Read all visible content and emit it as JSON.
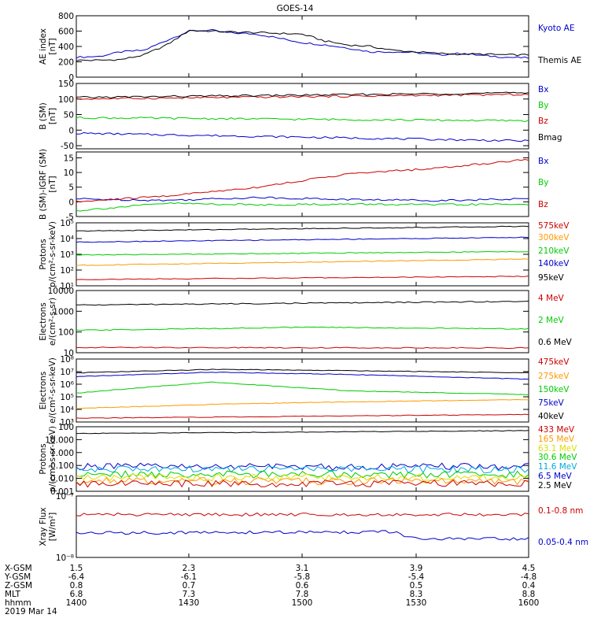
{
  "title": "GOES-14",
  "footer": {
    "rows": [
      {
        "label": "X-GSM",
        "values": [
          "1.5",
          "2.3",
          "3.1",
          "3.9",
          "4.5"
        ]
      },
      {
        "label": "Y-GSM",
        "values": [
          "-6.4",
          "-6.1",
          "-5.8",
          "-5.4",
          "-4.8"
        ]
      },
      {
        "label": "Z-GSM",
        "values": [
          "0.8",
          "0.7",
          "0.6",
          "0.5",
          "0.4"
        ]
      },
      {
        "label": "MLT",
        "values": [
          "6.8",
          "7.3",
          "7.8",
          "8.3",
          "8.8"
        ]
      },
      {
        "label": "hhmm",
        "values": [
          "1400",
          "1430",
          "1500",
          "1530",
          "1600"
        ]
      }
    ],
    "date": "2019 Mar 14"
  },
  "colors": {
    "black": "#000000",
    "blue": "#0000cc",
    "red": "#cc0000",
    "green": "#00cc00",
    "orange": "#ff9900",
    "cyan": "#00aadd",
    "yellow": "#dddd00"
  },
  "chart_data": [
    {
      "type": "line",
      "ylabel": [
        "AE index",
        "[nT]"
      ],
      "ylim": [
        0,
        800
      ],
      "yticks": [
        "0",
        "200",
        "400",
        "600",
        "800"
      ],
      "yticks_values": [
        0,
        200,
        400,
        600,
        800
      ],
      "series": [
        {
          "name": "Kyoto AE",
          "color": "#0000cc",
          "x": [
            0,
            0.05,
            0.1,
            0.15,
            0.2,
            0.25,
            0.3,
            0.33,
            0.4,
            0.5,
            0.55,
            0.6,
            0.65,
            0.7,
            0.75,
            0.8,
            0.85,
            0.9,
            0.95,
            1
          ],
          "values": [
            260,
            270,
            330,
            350,
            480,
            600,
            610,
            580,
            560,
            450,
            420,
            380,
            330,
            330,
            320,
            290,
            310,
            280,
            260,
            250
          ]
        },
        {
          "name": "Themis AE",
          "color": "#000000",
          "x": [
            0,
            0.05,
            0.1,
            0.15,
            0.2,
            0.25,
            0.3,
            0.33,
            0.4,
            0.5,
            0.55,
            0.6,
            0.65,
            0.7,
            0.75,
            0.8,
            0.85,
            0.9,
            0.95,
            1
          ],
          "values": [
            220,
            220,
            230,
            290,
            420,
            610,
            600,
            590,
            580,
            560,
            470,
            420,
            400,
            350,
            330,
            310,
            300,
            300,
            290,
            290
          ]
        }
      ],
      "labels": [
        "Kyoto AE",
        "Themis AE"
      ]
    },
    {
      "type": "line",
      "ylabel": [
        "B (SM)",
        "[nT]"
      ],
      "ylim": [
        -60,
        150
      ],
      "yticks": [
        "-50",
        "0",
        "50",
        "100",
        "150"
      ],
      "yticks_values": [
        -50,
        0,
        50,
        100,
        150
      ],
      "series": [
        {
          "name": "Bx",
          "color": "#0000cc",
          "x": [
            0,
            1
          ],
          "values": [
            -10,
            -35
          ]
        },
        {
          "name": "By",
          "color": "#00cc00",
          "x": [
            0,
            1
          ],
          "values": [
            40,
            30
          ]
        },
        {
          "name": "Bz",
          "color": "#cc0000",
          "x": [
            0,
            1
          ],
          "values": [
            100,
            115
          ]
        },
        {
          "name": "Bmag",
          "color": "#000000",
          "x": [
            0,
            1
          ],
          "values": [
            105,
            120
          ]
        }
      ],
      "labels": [
        "Bx",
        "By",
        "Bz",
        "Bmag"
      ]
    },
    {
      "type": "line",
      "ylabel": [
        "B (SM)-IGRF (SM)",
        "[nT]"
      ],
      "ylim": [
        -5,
        17
      ],
      "yticks": [
        "-5",
        "0",
        "5",
        "10",
        "15"
      ],
      "yticks_values": [
        -5,
        0,
        5,
        10,
        15
      ],
      "series": [
        {
          "name": "Bx",
          "color": "#0000cc",
          "x": [
            0,
            0.2,
            0.4,
            0.6,
            0.8,
            1
          ],
          "values": [
            1,
            0.5,
            1.5,
            0.8,
            0.5,
            1
          ]
        },
        {
          "name": "By",
          "color": "#00cc00",
          "x": [
            0,
            0.2,
            0.4,
            0.6,
            0.8,
            1
          ],
          "values": [
            -3,
            -0.5,
            -1,
            -0.8,
            -1,
            -0.8
          ]
        },
        {
          "name": "Bz",
          "color": "#cc0000",
          "x": [
            0,
            0.2,
            0.4,
            0.6,
            0.8,
            1
          ],
          "values": [
            0,
            2,
            5,
            9.5,
            11.5,
            14.5
          ]
        }
      ],
      "labels": [
        "Bx",
        "By",
        "Bz"
      ]
    },
    {
      "type": "line",
      "log": true,
      "ylabel": [
        "Protons",
        "p/(cm²-s-sr-keV)"
      ],
      "ylim": [
        10,
        100000
      ],
      "yticks": [
        "10¹",
        "10²",
        "10³",
        "10⁴",
        "10⁵"
      ],
      "yticks_values": [
        10,
        100,
        1000,
        10000,
        100000
      ],
      "series": [
        {
          "name": "575keV",
          "color": "#000000",
          "x": [
            0,
            1
          ],
          "values": [
            30000,
            60000
          ]
        },
        {
          "name": "300keV",
          "color": "#0000cc",
          "x": [
            0,
            1
          ],
          "values": [
            6000,
            12000
          ]
        },
        {
          "name": "210keV",
          "color": "#00cc00",
          "x": [
            0,
            1
          ],
          "values": [
            900,
            1500
          ]
        },
        {
          "name": "140keV",
          "color": "#ff9900",
          "x": [
            0,
            1
          ],
          "values": [
            200,
            500
          ]
        },
        {
          "name": "95keV",
          "color": "#cc0000",
          "x": [
            0,
            1
          ],
          "values": [
            25,
            40
          ]
        }
      ],
      "labels": [
        "575keV",
        "300keV",
        "210keV",
        "140keV",
        "95keV"
      ],
      "label_colors": [
        "#cc0000",
        "#ff9900",
        "#00cc00",
        "#0000cc",
        "#000000"
      ]
    },
    {
      "type": "line",
      "log": true,
      "ylabel": [
        "Electrons",
        "e/(cm²-s-sr)"
      ],
      "ylim": [
        10,
        10000
      ],
      "yticks": [
        "10",
        "100",
        "1000",
        "10000"
      ],
      "yticks_values": [
        10,
        100,
        1000,
        10000
      ],
      "series": [
        {
          "name": "0.6 MeV",
          "color": "#000000",
          "x": [
            0,
            1
          ],
          "values": [
            2000,
            3000
          ]
        },
        {
          "name": "2 MeV",
          "color": "#00cc00",
          "x": [
            0,
            0.5,
            1
          ],
          "values": [
            120,
            170,
            140
          ]
        },
        {
          "name": "4 MeV",
          "color": "#cc0000",
          "x": [
            0,
            1
          ],
          "values": [
            18,
            17
          ]
        }
      ],
      "labels": [
        "4 MeV",
        "2 MeV",
        "0.6 MeV"
      ],
      "label_colors": [
        "#cc0000",
        "#00cc00",
        "#000000"
      ]
    },
    {
      "type": "line",
      "log": true,
      "ylabel": [
        "Electrons",
        "e/(cm²-s-sr-keV)"
      ],
      "ylim": [
        1000,
        100000000
      ],
      "yticks": [
        "10³",
        "10⁴",
        "10⁵",
        "10⁶",
        "10⁷",
        "10⁸"
      ],
      "yticks_values": [
        1000,
        10000,
        100000,
        1000000,
        10000000,
        100000000
      ],
      "series": [
        {
          "name": "40keV",
          "color": "#000000",
          "x": [
            0,
            0.3,
            0.6,
            1
          ],
          "values": [
            8000000,
            15000000,
            12000000,
            8000000
          ]
        },
        {
          "name": "75keV",
          "color": "#0000cc",
          "x": [
            0,
            0.3,
            0.6,
            1
          ],
          "values": [
            4000000,
            9000000,
            6000000,
            2500000
          ]
        },
        {
          "name": "150keV",
          "color": "#00cc00",
          "x": [
            0,
            0.3,
            0.6,
            1
          ],
          "values": [
            200000,
            1500000,
            300000,
            150000
          ]
        },
        {
          "name": "275keV",
          "color": "#ff9900",
          "x": [
            0,
            0.3,
            0.6,
            1
          ],
          "values": [
            12000,
            25000,
            40000,
            60000
          ]
        },
        {
          "name": "475keV",
          "color": "#cc0000",
          "x": [
            0,
            1
          ],
          "values": [
            2000,
            4000
          ]
        }
      ],
      "labels": [
        "475keV",
        "275keV",
        "150keV",
        "75keV",
        "40keV"
      ],
      "label_colors": [
        "#cc0000",
        "#ff9900",
        "#00cc00",
        "#0000cc",
        "#000000"
      ]
    },
    {
      "type": "line",
      "log": true,
      "ylabel": [
        "Protons",
        "p/(cm²-s-sr-keV)"
      ],
      "ylim": [
        0.001,
        100
      ],
      "yticks": [
        "0.001",
        "0.010",
        "0.100",
        "1.000",
        "10.000",
        "100"
      ],
      "yticks_values": [
        0.001,
        0.01,
        0.1,
        1,
        10,
        100
      ],
      "series": [
        {
          "name": "2.5 MeV",
          "color": "#000000",
          "x": [
            0,
            1
          ],
          "values": [
            30,
            50
          ]
        },
        {
          "name": "6.5 MeV",
          "color": "#0000cc",
          "x": [
            0,
            1
          ],
          "values": [
            0.08,
            0.08
          ]
        },
        {
          "name": "11.6 MeV",
          "color": "#00aadd",
          "x": [
            0,
            1
          ],
          "values": [
            0.05,
            0.05
          ]
        },
        {
          "name": "30.6 MeV",
          "color": "#00cc00",
          "x": [
            0,
            1
          ],
          "values": [
            0.02,
            0.02
          ]
        },
        {
          "name": "63.1 MeV",
          "color": "#dddd00",
          "x": [
            0,
            1
          ],
          "values": [
            0.012,
            0.012
          ]
        },
        {
          "name": "165 MeV",
          "color": "#ff9900",
          "x": [
            0,
            1
          ],
          "values": [
            0.006,
            0.006
          ]
        },
        {
          "name": "433 MeV",
          "color": "#cc0000",
          "x": [
            0,
            1
          ],
          "values": [
            0.004,
            0.004
          ]
        }
      ],
      "labels": [
        "433 MeV",
        "165 MeV",
        "63.1 MeV",
        "30.6 MeV",
        "11.6 MeV",
        "6.5 MeV",
        "2.5 MeV"
      ],
      "label_colors": [
        "#cc0000",
        "#ff9900",
        "#dddd00",
        "#00cc00",
        "#00aadd",
        "#0000cc",
        "#000000"
      ]
    },
    {
      "type": "line",
      "log": true,
      "ylabel": [
        "Xray Flux",
        "[W/m²]"
      ],
      "ylim": [
        1e-08,
        1e-07
      ],
      "yticks": [
        "10⁻⁸",
        "10⁻⁷"
      ],
      "yticks_values": [
        1e-08,
        1e-07
      ],
      "series": [
        {
          "name": "0.1-0.8 nm",
          "color": "#cc0000",
          "x": [
            0,
            1
          ],
          "values": [
            5e-08,
            5e-08
          ]
        },
        {
          "name": "0.05-0.4 nm",
          "color": "#0000cc",
          "x": [
            0,
            0.7,
            0.75,
            1
          ],
          "values": [
            2.5e-08,
            2.6e-08,
            2e-08,
            2e-08
          ]
        }
      ],
      "labels": [
        "0.1-0.8 nm",
        "0.05-0.4 nm"
      ],
      "label_colors": [
        "#cc0000",
        "#0000cc"
      ]
    }
  ]
}
